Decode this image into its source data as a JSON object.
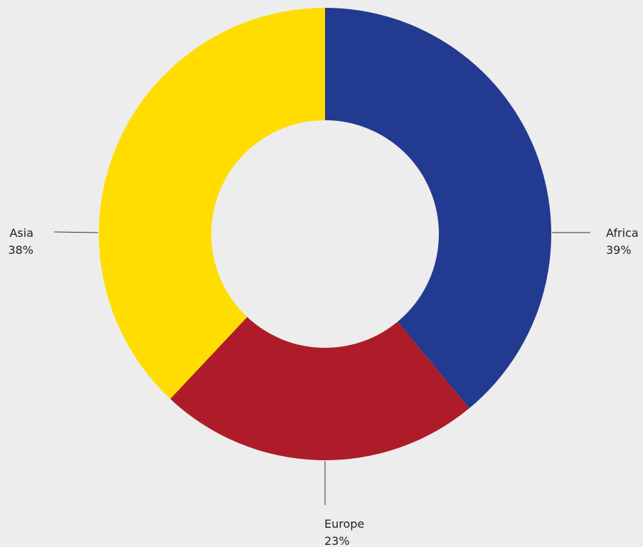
{
  "chart_data": {
    "type": "pie",
    "donut": true,
    "title": "",
    "slices": [
      {
        "label": "Africa",
        "value": 39,
        "display": "39%",
        "color": "#223a8f"
      },
      {
        "label": "Europe",
        "value": 23,
        "display": "23%",
        "color": "#ae1c29"
      },
      {
        "label": "Asia",
        "value": 38,
        "display": "38%",
        "color": "#ffdd00"
      }
    ],
    "start_angle": "12 o'clock",
    "direction": "clockwise",
    "legend": "none"
  }
}
